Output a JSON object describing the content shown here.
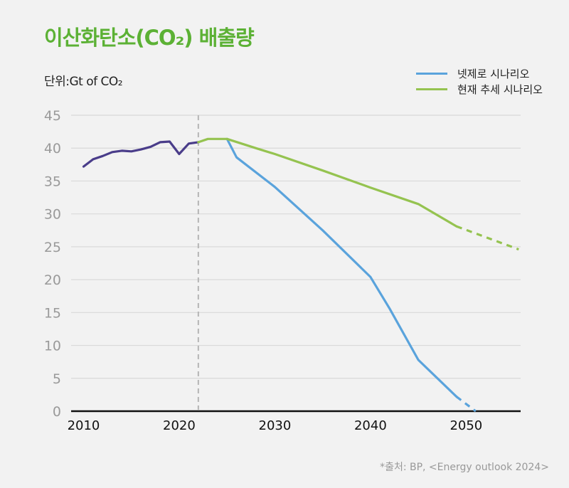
{
  "title": "이산화탄소(CO₂) 배출량",
  "unit_label": "단위:Gt of CO₂",
  "source": "*출처: BP, <Energy outlook 2024>",
  "colors": {
    "title": "#5cb135",
    "historical": "#4a3d8a",
    "net_zero": "#5aa3dc",
    "current_trend": "#95c350",
    "grid": "#d9d9d9",
    "divider": "#b5b5b5"
  },
  "chart_data": {
    "type": "line",
    "title": "이산화탄소(CO₂) 배출량",
    "xlabel": "",
    "ylabel": "단위:Gt of CO₂",
    "xlim": [
      2008.7,
      2055.7
    ],
    "ylim": [
      0,
      45
    ],
    "grid": true,
    "legend_position": "top-right",
    "x_ticks": [
      2010,
      2020,
      2030,
      2040,
      2050
    ],
    "x_tick_labels": [
      "2010",
      "2020",
      "2030",
      "2040",
      "2050"
    ],
    "y_ticks": [
      0,
      5,
      10,
      15,
      20,
      25,
      30,
      35,
      40,
      45
    ],
    "y_tick_labels": [
      "0",
      "5",
      "10",
      "15",
      "20",
      "25",
      "30",
      "35",
      "40",
      "45"
    ],
    "divider_year": 2022,
    "series": [
      {
        "name": "과거 배출량",
        "legend": false,
        "color_key": "historical",
        "x": [
          2010,
          2011,
          2012,
          2013,
          2014,
          2015,
          2016,
          2017,
          2018,
          2019,
          2020,
          2021,
          2022
        ],
        "y": [
          37.2,
          38.3,
          38.8,
          39.4,
          39.6,
          39.5,
          39.8,
          40.2,
          40.9,
          41.0,
          39.1,
          40.7,
          40.9
        ]
      },
      {
        "name": "넷제로 시나리오",
        "legend": true,
        "color_key": "net_zero",
        "x": [
          2025,
          2026,
          2030,
          2035,
          2040,
          2042,
          2045,
          2049
        ],
        "y": [
          41.4,
          38.6,
          34.1,
          27.5,
          20.4,
          15.6,
          7.8,
          2.2
        ],
        "dashed_x": [
          2049,
          2051
        ],
        "dashed_y": [
          2.2,
          0
        ]
      },
      {
        "name": "현재 추세 시나리오",
        "legend": true,
        "color_key": "current_trend",
        "x": [
          2022,
          2023,
          2025,
          2028,
          2030,
          2035,
          2040,
          2045,
          2049
        ],
        "y": [
          40.9,
          41.4,
          41.4,
          40.0,
          39.1,
          36.6,
          34.0,
          31.5,
          28.1
        ],
        "dashed_x": [
          2049,
          2055.5
        ],
        "dashed_y": [
          28.1,
          24.6
        ]
      }
    ]
  }
}
